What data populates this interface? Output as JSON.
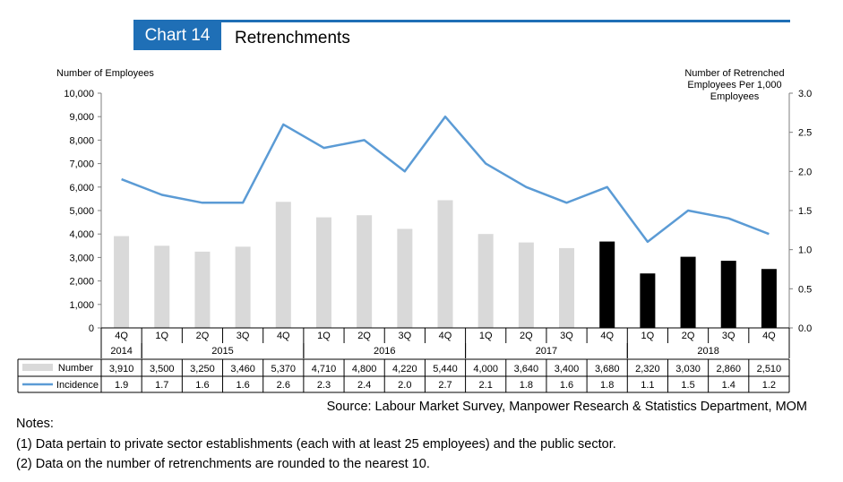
{
  "header": {
    "chart_number": "Chart 14",
    "title": "Retrenchments"
  },
  "colors": {
    "accent": "#1f6fb6",
    "bar_grey": "#d9d9d9",
    "bar_black": "#000000",
    "line": "#5b9bd5"
  },
  "chart_data": {
    "type": "bar",
    "title": "Retrenchments",
    "categories": [
      "4Q 2014",
      "1Q 2015",
      "2Q 2015",
      "3Q 2015",
      "4Q 2015",
      "1Q 2016",
      "2Q 2016",
      "3Q 2016",
      "4Q 2016",
      "1Q 2017",
      "2Q 2017",
      "3Q 2017",
      "4Q 2017",
      "1Q 2018",
      "2Q 2018",
      "3Q 2018",
      "4Q 2018"
    ],
    "quarters": [
      "4Q",
      "1Q",
      "2Q",
      "3Q",
      "4Q",
      "1Q",
      "2Q",
      "3Q",
      "4Q",
      "1Q",
      "2Q",
      "3Q",
      "4Q",
      "1Q",
      "2Q",
      "3Q",
      "4Q"
    ],
    "years": [
      {
        "label": "2014",
        "start": 0,
        "end": 0
      },
      {
        "label": "2015",
        "start": 1,
        "end": 4
      },
      {
        "label": "2016",
        "start": 5,
        "end": 8
      },
      {
        "label": "2017",
        "start": 9,
        "end": 12
      },
      {
        "label": "2018",
        "start": 13,
        "end": 16
      }
    ],
    "series": [
      {
        "name": "Number",
        "type": "bar",
        "axis": "left",
        "values": [
          3910,
          3500,
          3250,
          3460,
          5370,
          4710,
          4800,
          4220,
          5440,
          4000,
          3640,
          3400,
          3680,
          2320,
          3030,
          2860,
          2510
        ],
        "labels": [
          "3,910",
          "3,500",
          "3,250",
          "3,460",
          "5,370",
          "4,710",
          "4,800",
          "4,220",
          "5,440",
          "4,000",
          "3,640",
          "3,400",
          "3,680",
          "2,320",
          "3,030",
          "2,860",
          "2,510"
        ],
        "highlight_from_index": 12
      },
      {
        "name": "Incidence",
        "type": "line",
        "axis": "right",
        "values": [
          1.9,
          1.7,
          1.6,
          1.6,
          2.6,
          2.3,
          2.4,
          2.0,
          2.7,
          2.1,
          1.8,
          1.6,
          1.8,
          1.1,
          1.5,
          1.4,
          1.2
        ],
        "labels": [
          "1.9",
          "1.7",
          "1.6",
          "1.6",
          "2.6",
          "2.3",
          "2.4",
          "2.0",
          "2.7",
          "2.1",
          "1.8",
          "1.6",
          "1.8",
          "1.1",
          "1.5",
          "1.4",
          "1.2"
        ]
      }
    ],
    "ylabel_left": "Number of Employees",
    "ylabel_right": [
      "Number of Retrenched",
      "Employees Per 1,000",
      "Employees"
    ],
    "ylim_left": [
      0,
      10000
    ],
    "yticks_left": [
      "0",
      "1,000",
      "2,000",
      "3,000",
      "4,000",
      "5,000",
      "6,000",
      "7,000",
      "8,000",
      "9,000",
      "10,000"
    ],
    "ylim_right": [
      0,
      3.0
    ],
    "yticks_right": [
      "0.0",
      "0.5",
      "1.0",
      "1.5",
      "2.0",
      "2.5",
      "3.0"
    ],
    "grid": false,
    "legend": "table-below"
  },
  "source": "Source: Labour Market Survey, Manpower Research & Statistics Department, MOM",
  "notes": {
    "heading": "Notes:",
    "items": [
      "(1)  Data pertain to private sector establishments (each with at least 25 employees) and the public sector.",
      "(2)  Data on the number of retrenchments are rounded to the nearest 10."
    ]
  }
}
